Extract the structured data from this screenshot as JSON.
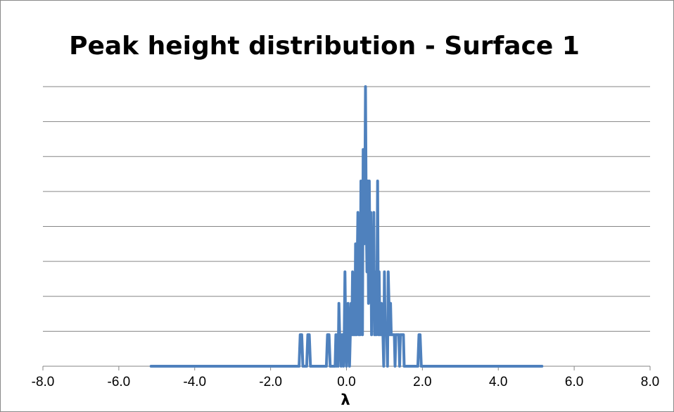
{
  "chart_data": {
    "type": "line",
    "title": "Peak height distribution - Surface 1",
    "xlabel": "λ",
    "ylabel": "",
    "xlim": [
      -8.0,
      8.0
    ],
    "ylim": [
      0,
      8
    ],
    "x_ticks": [
      "-8.0",
      "-6.0",
      "-4.0",
      "-2.0",
      "0.0",
      "2.0",
      "4.0",
      "6.0",
      "8.0"
    ],
    "y_ticks_visible": false,
    "grid": "horizontal",
    "legend": "none",
    "series": [
      {
        "color": "#4f81bd",
        "x": [
          -5.15,
          -1.25,
          -1.22,
          -1.18,
          -1.15,
          -1.05,
          -1.02,
          -0.98,
          -0.95,
          -0.53,
          -0.5,
          -0.46,
          -0.43,
          -0.3,
          -0.28,
          -0.26,
          -0.24,
          -0.22,
          -0.2,
          -0.18,
          -0.16,
          -0.14,
          -0.12,
          -0.1,
          -0.08,
          -0.06,
          -0.04,
          -0.02,
          0.0,
          0.02,
          0.04,
          0.06,
          0.08,
          0.1,
          0.12,
          0.14,
          0.16,
          0.18,
          0.2,
          0.22,
          0.24,
          0.26,
          0.28,
          0.3,
          0.32,
          0.34,
          0.36,
          0.38,
          0.4,
          0.42,
          0.44,
          0.46,
          0.48,
          0.5,
          0.52,
          0.54,
          0.56,
          0.58,
          0.6,
          0.62,
          0.64,
          0.66,
          0.68,
          0.7,
          0.72,
          0.74,
          0.76,
          0.78,
          0.8,
          0.82,
          0.84,
          0.86,
          0.88,
          0.9,
          0.92,
          0.94,
          0.96,
          0.98,
          1.0,
          1.02,
          1.04,
          1.06,
          1.08,
          1.1,
          1.12,
          1.14,
          1.16,
          1.18,
          1.2,
          1.22,
          1.24,
          1.26,
          1.28,
          1.3,
          1.32,
          1.34,
          1.36,
          1.38,
          1.4,
          1.42,
          1.44,
          1.46,
          1.48,
          1.5,
          1.52,
          1.88,
          1.91,
          1.94,
          1.97,
          5.15
        ],
        "y": [
          0,
          0,
          0.9,
          0.9,
          0,
          0,
          0.9,
          0.9,
          0,
          0,
          0.9,
          0.9,
          0,
          0,
          0.9,
          0,
          0.9,
          0,
          1.8,
          0.9,
          0.9,
          0,
          0.9,
          0.9,
          0,
          0.9,
          2.7,
          0.9,
          0,
          0.9,
          1.8,
          0.9,
          0,
          0.9,
          1.8,
          0.9,
          2.7,
          0.9,
          1.8,
          0.9,
          3.5,
          0.9,
          2.7,
          4.4,
          0.9,
          3.5,
          0.9,
          5.3,
          2.7,
          0.9,
          6.2,
          3.5,
          4.4,
          8.0,
          4.4,
          2.7,
          5.3,
          1.8,
          5.3,
          2.7,
          4.4,
          0.9,
          3.5,
          1.8,
          4.4,
          0.9,
          2.7,
          0.9,
          1.8,
          5.3,
          0.9,
          2.7,
          0.9,
          0.9,
          1.8,
          0.9,
          0.9,
          0,
          2.7,
          0.9,
          0.9,
          0.9,
          0,
          2.7,
          1.8,
          0.9,
          1.8,
          0.9,
          0.9,
          0.9,
          0.9,
          0.9,
          0,
          0.9,
          0.9,
          0.9,
          0.9,
          0.9,
          0,
          0.9,
          0.9,
          0.9,
          0.9,
          0.9,
          0,
          0,
          0.9,
          0.9,
          0,
          0
        ]
      }
    ]
  }
}
